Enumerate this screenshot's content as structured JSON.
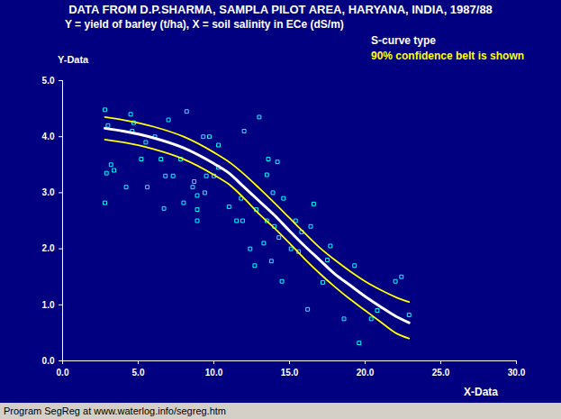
{
  "chart_data": {
    "type": "scatter",
    "title": "DATA FROM D.P.SHARMA, SAMPLA PILOT AREA, HARYANA, INDIA, 1987/88",
    "subtitle": "Y = yield of barley (t/ha), X = soil salinity in ECe (dS/m)",
    "annotations": [
      {
        "text": "S-curve type",
        "color": "#ffffff"
      },
      {
        "text": "90% confidence belt is shown",
        "color": "#ffff00"
      }
    ],
    "x_label": "X-Data",
    "y_label": "Y-Data",
    "caption": "Program SegReg at www.waterlog.info/segreg.htm",
    "xlim": [
      0,
      30
    ],
    "xticks": [
      {
        "value": 0,
        "label": "0.0"
      },
      {
        "value": 5,
        "label": "5.0"
      },
      {
        "value": 10,
        "label": "10.0"
      },
      {
        "value": 15,
        "label": "15.0"
      },
      {
        "value": 20,
        "label": "20.0"
      },
      {
        "value": 25,
        "label": "25.0"
      },
      {
        "value": 30,
        "label": "30.0"
      }
    ],
    "ylim": [
      0,
      5
    ],
    "yticks": [
      {
        "value": 0,
        "label": "0.0"
      },
      {
        "value": 1,
        "label": "1.0"
      },
      {
        "value": 2,
        "label": "2.0"
      },
      {
        "value": 3,
        "label": "3.0"
      },
      {
        "value": 4,
        "label": "4.0"
      },
      {
        "value": 5,
        "label": "5.0"
      }
    ],
    "grid": false,
    "series": [
      {
        "type": "scatter",
        "color": "#00ffff",
        "marker": "square",
        "x": [
          2.8,
          3.0,
          3.2,
          3.4,
          2.9,
          2.8,
          4.2,
          4.5,
          4.7,
          4.6,
          5.2,
          5.6,
          5.5,
          6.1,
          6.5,
          6.8,
          7.0,
          6.7,
          7.3,
          7.8,
          8.0,
          8.2,
          8.6,
          8.7,
          8.9,
          8.9,
          8.9,
          9.3,
          9.4,
          9.5,
          9.7,
          10.0,
          10.3,
          10.3,
          11.0,
          11.5,
          11.8,
          11.9,
          12.0,
          12.4,
          12.7,
          12.8,
          13.0,
          13.3,
          13.5,
          13.5,
          13.6,
          13.8,
          13.9,
          14.0,
          14.2,
          14.3,
          14.5,
          14.6,
          15.1,
          15.4,
          15.6,
          15.8,
          16.2,
          16.4,
          16.6,
          17.2,
          17.5,
          17.7,
          18.6,
          19.3,
          19.6,
          20.4,
          20.8,
          22.0,
          22.4,
          22.9
        ],
        "values": [
          4.48,
          4.2,
          3.5,
          3.4,
          3.35,
          2.82,
          3.1,
          4.4,
          4.25,
          4.1,
          3.6,
          3.1,
          3.9,
          4.0,
          3.6,
          3.3,
          4.3,
          2.72,
          3.3,
          3.6,
          2.82,
          4.45,
          3.1,
          3.2,
          2.95,
          2.5,
          2.7,
          4.0,
          3.0,
          3.3,
          4.0,
          3.3,
          3.85,
          3.45,
          2.75,
          2.5,
          2.9,
          2.5,
          4.1,
          2.0,
          1.7,
          2.7,
          4.35,
          2.1,
          3.32,
          2.5,
          3.6,
          1.78,
          3.0,
          2.4,
          3.55,
          2.2,
          1.42,
          2.9,
          2.0,
          2.5,
          1.95,
          2.3,
          0.92,
          2.4,
          2.8,
          1.4,
          1.8,
          2.05,
          0.75,
          1.7,
          0.32,
          0.75,
          0.9,
          1.42,
          1.5,
          0.82
        ]
      },
      {
        "type": "line",
        "color": "#ffff00",
        "line_style": "solid",
        "x": [
          2.8,
          4,
          6,
          8,
          10,
          11,
          12,
          13,
          14,
          15,
          16,
          17,
          18,
          19,
          20,
          21,
          22,
          22.9
        ],
        "values": [
          4.35,
          4.3,
          4.18,
          4.0,
          3.72,
          3.55,
          3.33,
          3.08,
          2.82,
          2.55,
          2.28,
          2.02,
          1.8,
          1.6,
          1.42,
          1.27,
          1.14,
          1.05
        ]
      },
      {
        "type": "line",
        "color": "#ffff00",
        "line_style": "solid",
        "x": [
          2.8,
          4,
          6,
          8,
          10,
          11,
          12,
          13,
          14,
          15,
          16,
          17,
          18,
          19,
          20,
          21,
          22,
          22.9
        ],
        "values": [
          3.95,
          3.9,
          3.78,
          3.6,
          3.32,
          3.15,
          2.9,
          2.62,
          2.37,
          2.1,
          1.82,
          1.56,
          1.32,
          1.1,
          0.9,
          0.7,
          0.5,
          0.4
        ]
      },
      {
        "type": "line",
        "color": "#ffffff",
        "line_style": "thick",
        "x": [
          2.8,
          4,
          6,
          8,
          10,
          11,
          12,
          13,
          14,
          15,
          16,
          17,
          18,
          19,
          20,
          21,
          22,
          22.9
        ],
        "values": [
          4.15,
          4.1,
          3.98,
          3.8,
          3.52,
          3.35,
          3.1,
          2.85,
          2.6,
          2.32,
          2.05,
          1.8,
          1.55,
          1.35,
          1.15,
          0.97,
          0.8,
          0.68
        ]
      }
    ]
  }
}
